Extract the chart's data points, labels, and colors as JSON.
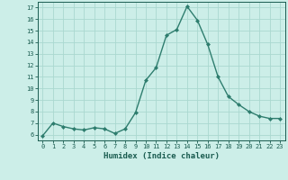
{
  "x": [
    0,
    1,
    2,
    3,
    4,
    5,
    6,
    7,
    8,
    9,
    10,
    11,
    12,
    13,
    14,
    15,
    16,
    17,
    18,
    19,
    20,
    21,
    22,
    23
  ],
  "y": [
    5.9,
    7.0,
    6.7,
    6.5,
    6.4,
    6.6,
    6.5,
    6.1,
    6.5,
    7.9,
    10.7,
    11.8,
    14.6,
    15.1,
    17.1,
    15.9,
    13.8,
    11.0,
    9.3,
    8.6,
    8.0,
    7.6,
    7.4,
    7.4
  ],
  "line_color": "#2e7d6e",
  "bg_color": "#cceee8",
  "grid_color": "#aad8d0",
  "xlabel": "Humidex (Indice chaleur)",
  "xlabel_color": "#1a5c50",
  "tick_color": "#1a5c50",
  "spine_color": "#1a5c50",
  "ylim": [
    5.5,
    17.5
  ],
  "xlim": [
    -0.5,
    23.5
  ],
  "yticks": [
    6,
    7,
    8,
    9,
    10,
    11,
    12,
    13,
    14,
    15,
    16,
    17
  ],
  "xticks": [
    0,
    1,
    2,
    3,
    4,
    5,
    6,
    7,
    8,
    9,
    10,
    11,
    12,
    13,
    14,
    15,
    16,
    17,
    18,
    19,
    20,
    21,
    22,
    23
  ],
  "marker": "D",
  "marker_size": 2.0,
  "line_width": 1.0,
  "tick_fontsize": 5.0,
  "xlabel_fontsize": 6.5,
  "xlabel_fontweight": "bold"
}
